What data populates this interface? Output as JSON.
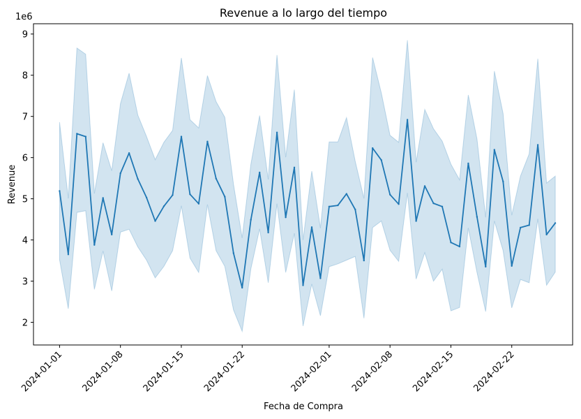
{
  "chart_data": {
    "type": "line",
    "title": "Revenue a lo largo del tiempo",
    "xlabel": "Fecha de Compra",
    "ylabel": "Revenue",
    "y_scale_label": "1e6",
    "ylim": [
      1.45,
      9.25
    ],
    "yticks": [
      2,
      3,
      4,
      5,
      6,
      7,
      8,
      9
    ],
    "x_start": "2024-01-01",
    "xlim": [
      "2023-12-29",
      "2024-02-29"
    ],
    "xticks": [
      "2024-01-01",
      "2024-01-08",
      "2024-01-15",
      "2024-01-22",
      "2024-02-01",
      "2024-02-08",
      "2024-02-15",
      "2024-02-22"
    ],
    "colors": {
      "line": "#1f77b4",
      "band": "#1f77b4"
    },
    "grid": false,
    "series": [
      {
        "values": [
          5.19,
          3.65,
          6.58,
          6.51,
          3.88,
          5.02,
          4.13,
          5.62,
          6.11,
          5.48,
          5.03,
          4.46,
          4.82,
          5.09,
          6.51,
          5.11,
          4.88,
          6.39,
          5.49,
          5.05,
          3.68,
          2.84,
          4.49,
          5.64,
          4.18,
          6.61,
          4.55,
          5.76,
          2.9,
          4.31,
          3.07,
          4.81,
          4.84,
          5.12,
          4.74,
          3.5,
          6.23,
          5.94,
          5.1,
          4.87,
          6.92,
          4.46,
          5.31,
          4.89,
          4.81,
          3.94,
          3.84,
          5.86,
          4.56,
          3.35,
          6.19,
          5.42,
          3.37,
          4.3,
          4.36,
          6.31,
          4.13,
          4.41
        ],
        "ci_low": [
          3.52,
          2.33,
          4.67,
          4.71,
          2.8,
          3.73,
          2.76,
          4.19,
          4.26,
          3.83,
          3.51,
          3.08,
          3.36,
          3.74,
          4.83,
          3.56,
          3.21,
          4.86,
          3.74,
          3.36,
          2.3,
          1.78,
          3.3,
          4.27,
          2.96,
          4.88,
          3.21,
          4.16,
          1.91,
          2.93,
          2.16,
          3.35,
          3.42,
          3.51,
          3.6,
          2.1,
          4.3,
          4.46,
          3.75,
          3.48,
          5.14,
          3.05,
          3.69,
          3.0,
          3.29,
          2.28,
          2.36,
          4.29,
          3.21,
          2.26,
          4.46,
          3.74,
          2.35,
          3.04,
          2.96,
          4.51,
          2.9,
          3.22
        ],
        "ci_high": [
          6.86,
          5.01,
          8.66,
          8.51,
          5.13,
          6.36,
          5.68,
          7.31,
          8.05,
          7.03,
          6.51,
          5.95,
          6.37,
          6.66,
          8.42,
          6.92,
          6.72,
          7.99,
          7.36,
          6.98,
          5.35,
          4.05,
          5.84,
          7.02,
          5.47,
          8.49,
          6.01,
          7.65,
          4.0,
          5.67,
          4.29,
          6.38,
          6.38,
          6.97,
          5.91,
          5.01,
          8.43,
          7.57,
          6.54,
          6.37,
          8.85,
          5.89,
          7.17,
          6.7,
          6.4,
          5.84,
          5.46,
          7.52,
          6.45,
          4.55,
          8.1,
          7.07,
          4.6,
          5.55,
          6.09,
          8.4,
          5.38,
          5.55
        ]
      }
    ]
  }
}
